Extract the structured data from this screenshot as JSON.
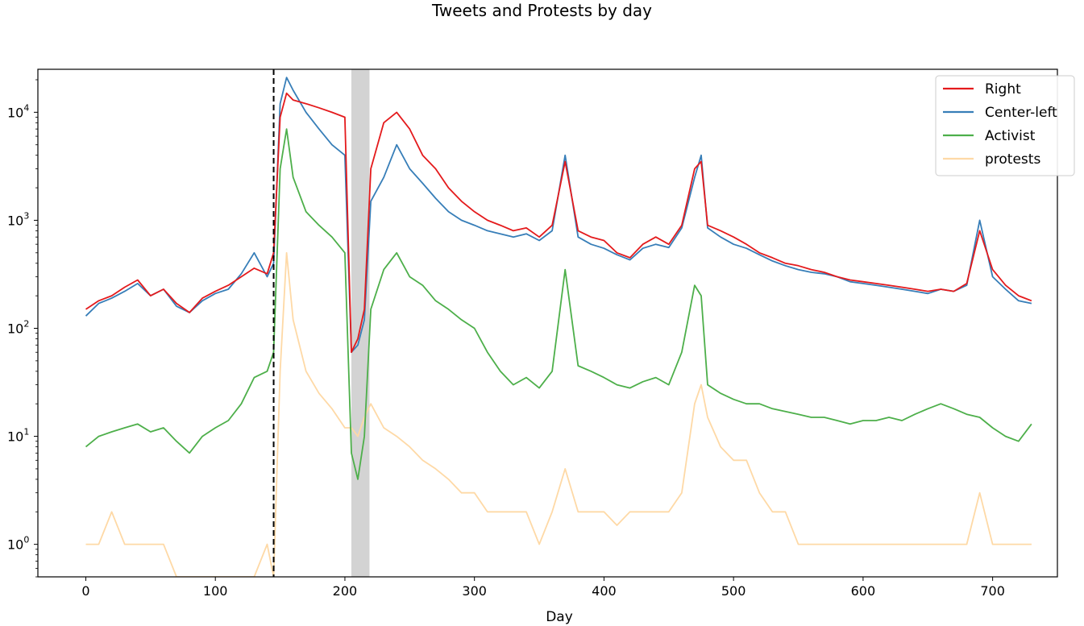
{
  "chart_data": {
    "type": "line",
    "title": "Tweets and Protests by day",
    "xlabel": "Day",
    "ylabel": "",
    "xlim": [
      -37,
      750
    ],
    "ylim": [
      0.5,
      25000
    ],
    "yscale": "log",
    "x_ticks": [
      0,
      100,
      200,
      300,
      400,
      500,
      600,
      700
    ],
    "y_ticks": [
      {
        "value": 1,
        "base": "10",
        "exp": "0"
      },
      {
        "value": 10,
        "base": "10",
        "exp": "1"
      },
      {
        "value": 100,
        "base": "10",
        "exp": "2"
      },
      {
        "value": 1000,
        "base": "10",
        "exp": "3"
      },
      {
        "value": 10000,
        "base": "10",
        "exp": "4"
      }
    ],
    "grid": false,
    "legend_position": "top-right",
    "vline": {
      "x": 145,
      "style": "dashed",
      "color": "#000000"
    },
    "shaded_span": {
      "x0": 205,
      "x1": 219,
      "color": "#bbbbbb"
    },
    "series": [
      {
        "name": "Right",
        "color": "#e41a1c",
        "x": [
          0,
          10,
          20,
          30,
          40,
          50,
          60,
          70,
          80,
          90,
          100,
          110,
          120,
          130,
          140,
          145,
          150,
          155,
          160,
          170,
          180,
          190,
          200,
          205,
          210,
          215,
          220,
          230,
          240,
          250,
          260,
          270,
          280,
          290,
          300,
          310,
          320,
          330,
          340,
          350,
          360,
          370,
          380,
          390,
          400,
          410,
          420,
          430,
          440,
          450,
          460,
          470,
          475,
          480,
          490,
          500,
          510,
          520,
          530,
          540,
          550,
          560,
          570,
          580,
          590,
          600,
          610,
          620,
          630,
          640,
          650,
          660,
          670,
          680,
          690,
          700,
          710,
          720,
          730
        ],
        "values": [
          150,
          180,
          200,
          240,
          280,
          200,
          230,
          170,
          140,
          190,
          220,
          250,
          300,
          360,
          320,
          500,
          9000,
          15000,
          13000,
          12000,
          11000,
          10000,
          9000,
          60,
          80,
          150,
          3000,
          8000,
          10000,
          7000,
          4000,
          3000,
          2000,
          1500,
          1200,
          1000,
          900,
          800,
          850,
          700,
          900,
          3500,
          800,
          700,
          650,
          500,
          450,
          600,
          700,
          600,
          900,
          3000,
          3500,
          900,
          800,
          700,
          600,
          500,
          450,
          400,
          380,
          350,
          330,
          300,
          280,
          270,
          260,
          250,
          240,
          230,
          220,
          230,
          220,
          260,
          800,
          350,
          250,
          200,
          180
        ]
      },
      {
        "name": "Center-left",
        "color": "#377eb8",
        "x": [
          0,
          10,
          20,
          30,
          40,
          50,
          60,
          70,
          80,
          90,
          100,
          110,
          120,
          130,
          140,
          145,
          150,
          155,
          160,
          170,
          180,
          190,
          200,
          205,
          210,
          215,
          220,
          230,
          240,
          250,
          260,
          270,
          280,
          290,
          300,
          310,
          320,
          330,
          340,
          350,
          360,
          370,
          380,
          390,
          400,
          410,
          420,
          430,
          440,
          450,
          460,
          470,
          475,
          480,
          490,
          500,
          510,
          520,
          530,
          540,
          550,
          560,
          570,
          580,
          590,
          600,
          610,
          620,
          630,
          640,
          650,
          660,
          670,
          680,
          690,
          700,
          710,
          720,
          730
        ],
        "values": [
          130,
          170,
          190,
          220,
          260,
          200,
          230,
          160,
          140,
          180,
          210,
          230,
          320,
          500,
          300,
          400,
          12000,
          21000,
          16000,
          10000,
          7000,
          5000,
          4000,
          60,
          70,
          120,
          1500,
          2500,
          5000,
          3000,
          2200,
          1600,
          1200,
          1000,
          900,
          800,
          750,
          700,
          750,
          650,
          800,
          4000,
          700,
          600,
          550,
          480,
          430,
          550,
          600,
          560,
          850,
          2500,
          4000,
          850,
          700,
          600,
          550,
          480,
          420,
          380,
          350,
          330,
          320,
          300,
          270,
          260,
          250,
          240,
          230,
          220,
          210,
          230,
          220,
          250,
          1000,
          300,
          230,
          180,
          170
        ]
      },
      {
        "name": "Activist",
        "color": "#4daf4a",
        "x": [
          0,
          10,
          20,
          30,
          40,
          50,
          60,
          70,
          80,
          90,
          100,
          110,
          120,
          130,
          140,
          145,
          150,
          155,
          160,
          170,
          180,
          190,
          200,
          205,
          210,
          215,
          220,
          230,
          240,
          250,
          260,
          270,
          280,
          290,
          300,
          310,
          320,
          330,
          340,
          350,
          360,
          370,
          380,
          390,
          400,
          410,
          420,
          430,
          440,
          450,
          460,
          470,
          475,
          480,
          490,
          500,
          510,
          520,
          530,
          540,
          550,
          560,
          570,
          580,
          590,
          600,
          610,
          620,
          630,
          640,
          650,
          660,
          670,
          680,
          690,
          700,
          710,
          720,
          730
        ],
        "values": [
          8,
          10,
          11,
          12,
          13,
          11,
          12,
          9,
          7,
          10,
          12,
          14,
          20,
          35,
          40,
          60,
          3000,
          7000,
          2500,
          1200,
          900,
          700,
          500,
          7,
          4,
          10,
          150,
          350,
          500,
          300,
          250,
          180,
          150,
          120,
          100,
          60,
          40,
          30,
          35,
          28,
          40,
          350,
          45,
          40,
          35,
          30,
          28,
          32,
          35,
          30,
          60,
          250,
          200,
          30,
          25,
          22,
          20,
          20,
          18,
          17,
          16,
          15,
          15,
          14,
          13,
          14,
          14,
          15,
          14,
          16,
          18,
          20,
          18,
          16,
          15,
          12,
          10,
          9,
          13
        ]
      },
      {
        "name": "protests",
        "color": "#fed9a6",
        "x": [
          0,
          10,
          20,
          30,
          40,
          50,
          60,
          70,
          80,
          90,
          100,
          110,
          120,
          130,
          140,
          145,
          150,
          155,
          160,
          170,
          180,
          190,
          200,
          205,
          210,
          215,
          220,
          230,
          240,
          250,
          260,
          270,
          280,
          290,
          300,
          310,
          320,
          330,
          340,
          350,
          360,
          370,
          380,
          390,
          400,
          410,
          420,
          430,
          440,
          450,
          460,
          470,
          475,
          480,
          490,
          500,
          510,
          520,
          530,
          540,
          550,
          560,
          570,
          580,
          590,
          600,
          610,
          620,
          630,
          640,
          650,
          660,
          670,
          680,
          690,
          700,
          710,
          720,
          730
        ],
        "values": [
          1,
          1,
          2,
          1,
          1,
          1,
          1,
          0.5,
          0.5,
          0.5,
          0.5,
          0.5,
          0.5,
          0.5,
          1,
          0.5,
          40,
          500,
          120,
          40,
          25,
          18,
          12,
          12,
          10,
          15,
          20,
          12,
          10,
          8,
          6,
          5,
          4,
          3,
          3,
          2,
          2,
          2,
          2,
          1,
          2,
          5,
          2,
          2,
          2,
          1.5,
          2,
          2,
          2,
          2,
          3,
          20,
          30,
          15,
          8,
          6,
          6,
          3,
          2,
          2,
          1,
          1,
          1,
          1,
          1,
          1,
          1,
          1,
          1,
          1,
          1,
          1,
          1,
          1,
          3,
          1,
          1,
          1,
          1
        ]
      }
    ]
  }
}
